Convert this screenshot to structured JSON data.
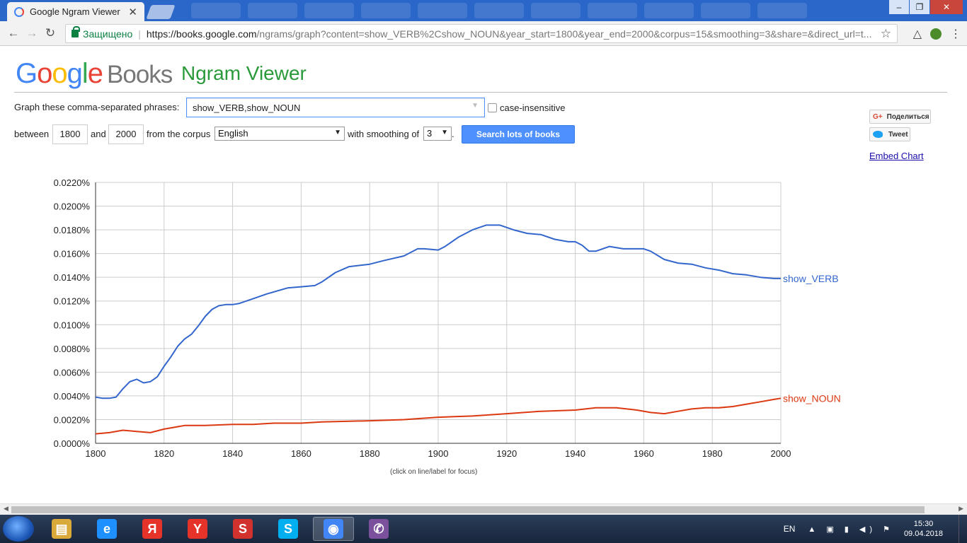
{
  "browser": {
    "tab_title": "Google Ngram Viewer",
    "tab_close": "✕",
    "secure_label": "Защищено",
    "url_host": "https://books.google.com",
    "url_rest": "/ngrams/graph?content=show_VERB%2Cshow_NOUN&year_start=1800&year_end=2000&corpus=15&smoothing=3&share=&direct_url=t...",
    "ext_badge_count": "1"
  },
  "header": {
    "logo_g": "G",
    "logo_o1": "o",
    "logo_o2": "o",
    "logo_g2": "g",
    "logo_l": "l",
    "logo_e": "e",
    "logo_books": "Books",
    "viewer_title": "Ngram Viewer"
  },
  "form": {
    "phrases_label": "Graph these comma-separated phrases:",
    "phrases_value": "show_VERB,show_NOUN",
    "case_insensitive_label": "case-insensitive",
    "between_label": "between",
    "year_start": "1800",
    "and_label": "and",
    "year_end": "2000",
    "corpus_label": "from the corpus",
    "corpus_value": "English",
    "smoothing_label": "with smoothing of",
    "smoothing_value": "3",
    "period": ".",
    "search_button": "Search lots of books"
  },
  "share": {
    "gplus_label": "Поделиться",
    "tweet_label": "Tweet",
    "embed_label": "Embed Chart"
  },
  "chart_data": {
    "type": "line",
    "xlim": [
      1800,
      2000
    ],
    "ylim": [
      0,
      0.022
    ],
    "x_ticks": [
      "1800",
      "1820",
      "1840",
      "1860",
      "1880",
      "1900",
      "1920",
      "1940",
      "1960",
      "1980",
      "2000"
    ],
    "y_ticks": [
      "0.0000%",
      "0.0020%",
      "0.0040%",
      "0.0060%",
      "0.0080%",
      "0.0100%",
      "0.0120%",
      "0.0140%",
      "0.0160%",
      "0.0180%",
      "0.0200%",
      "0.0220%"
    ],
    "grid": true,
    "note": "(click on line/label for focus)",
    "series": [
      {
        "name": "show_VERB",
        "color": "#3366cc",
        "x": [
          1800,
          1802,
          1804,
          1806,
          1808,
          1810,
          1812,
          1814,
          1816,
          1818,
          1820,
          1822,
          1824,
          1826,
          1828,
          1830,
          1832,
          1834,
          1836,
          1838,
          1840,
          1842,
          1846,
          1850,
          1856,
          1860,
          1864,
          1866,
          1870,
          1874,
          1880,
          1884,
          1890,
          1894,
          1896,
          1900,
          1902,
          1906,
          1910,
          1914,
          1918,
          1922,
          1926,
          1930,
          1934,
          1938,
          1940,
          1942,
          1944,
          1946,
          1948,
          1950,
          1954,
          1958,
          1960,
          1962,
          1966,
          1970,
          1974,
          1978,
          1982,
          1986,
          1990,
          1994,
          1998,
          2000
        ],
        "y": [
          0.0039,
          0.0038,
          0.0038,
          0.0039,
          0.0046,
          0.0052,
          0.0054,
          0.0051,
          0.0052,
          0.0056,
          0.0065,
          0.0073,
          0.0082,
          0.0088,
          0.0092,
          0.0099,
          0.0107,
          0.0113,
          0.0116,
          0.0117,
          0.0117,
          0.0118,
          0.0122,
          0.0126,
          0.0131,
          0.0132,
          0.0133,
          0.0136,
          0.0144,
          0.0149,
          0.0151,
          0.0154,
          0.0158,
          0.0164,
          0.0164,
          0.0163,
          0.0166,
          0.0174,
          0.018,
          0.0184,
          0.0184,
          0.018,
          0.0177,
          0.0176,
          0.0172,
          0.017,
          0.017,
          0.0167,
          0.0162,
          0.0162,
          0.0164,
          0.0166,
          0.0164,
          0.0164,
          0.0164,
          0.0162,
          0.0155,
          0.0152,
          0.0151,
          0.0148,
          0.0146,
          0.0143,
          0.0142,
          0.014,
          0.0139,
          0.0139
        ]
      },
      {
        "name": "show_NOUN",
        "color": "#dc3912",
        "x": [
          1800,
          1804,
          1808,
          1812,
          1816,
          1820,
          1826,
          1832,
          1840,
          1846,
          1852,
          1860,
          1866,
          1880,
          1890,
          1900,
          1910,
          1920,
          1930,
          1940,
          1946,
          1952,
          1958,
          1962,
          1966,
          1970,
          1974,
          1978,
          1982,
          1986,
          1990,
          1994,
          1998,
          2000
        ],
        "y": [
          0.0008,
          0.0009,
          0.0011,
          0.001,
          0.0009,
          0.0012,
          0.0015,
          0.0015,
          0.0016,
          0.0016,
          0.0017,
          0.0017,
          0.0018,
          0.0019,
          0.002,
          0.0022,
          0.0023,
          0.0025,
          0.0027,
          0.0028,
          0.003,
          0.003,
          0.0028,
          0.0026,
          0.0025,
          0.0027,
          0.0029,
          0.003,
          0.003,
          0.0031,
          0.0033,
          0.0035,
          0.0037,
          0.0038
        ]
      }
    ]
  },
  "taskbar": {
    "lang": "EN",
    "time": "15:30",
    "date": "09.04.2018",
    "apps": [
      {
        "name": "explorer",
        "glyph": "▤",
        "color": "#d9a93a"
      },
      {
        "name": "ie",
        "glyph": "e",
        "color": "#1e90ff"
      },
      {
        "name": "yandex-browser",
        "glyph": "Я",
        "color": "#e6332a"
      },
      {
        "name": "yandex",
        "glyph": "Y",
        "color": "#e6332a"
      },
      {
        "name": "sketchup",
        "glyph": "S",
        "color": "#d2322d"
      },
      {
        "name": "skype",
        "glyph": "S",
        "color": "#00aff0"
      },
      {
        "name": "chrome",
        "glyph": "◉",
        "color": "#4285f4"
      },
      {
        "name": "viber",
        "glyph": "✆",
        "color": "#7b519d"
      }
    ]
  }
}
